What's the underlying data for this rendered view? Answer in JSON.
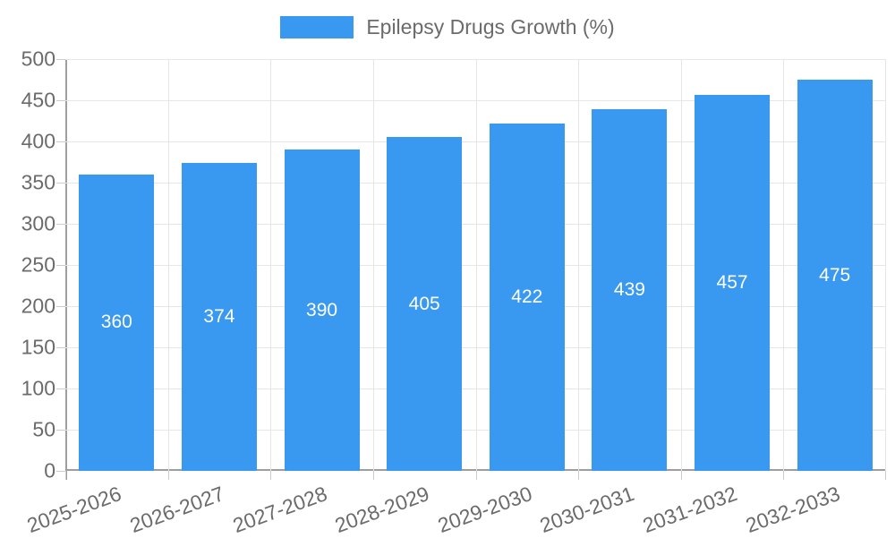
{
  "chart_data": {
    "type": "bar",
    "title": "Epilepsy Drugs Growth (%)",
    "legend": {
      "position": "top",
      "label": "Epilepsy Drugs Growth (%)"
    },
    "categories": [
      "2025-2026",
      "2026-2027",
      "2027-2028",
      "2028-2029",
      "2029-2030",
      "2030-2031",
      "2031-2032",
      "2032-2033"
    ],
    "values": [
      360,
      374,
      390,
      405,
      422,
      439,
      457,
      475
    ],
    "xlabel": "",
    "ylabel": "",
    "ylim": [
      0,
      500
    ],
    "ytick_step": 50,
    "yticks": [
      0,
      50,
      100,
      150,
      200,
      250,
      300,
      350,
      400,
      450,
      500
    ],
    "grid": true,
    "bar_label_position": "center",
    "colors": {
      "bar": "#3999f0",
      "bar_label": "#ffffff",
      "grid": "#e6e6e6",
      "tick": "#cccccc",
      "axis": "#9e9e9e",
      "text": "#6b6b6b"
    }
  }
}
